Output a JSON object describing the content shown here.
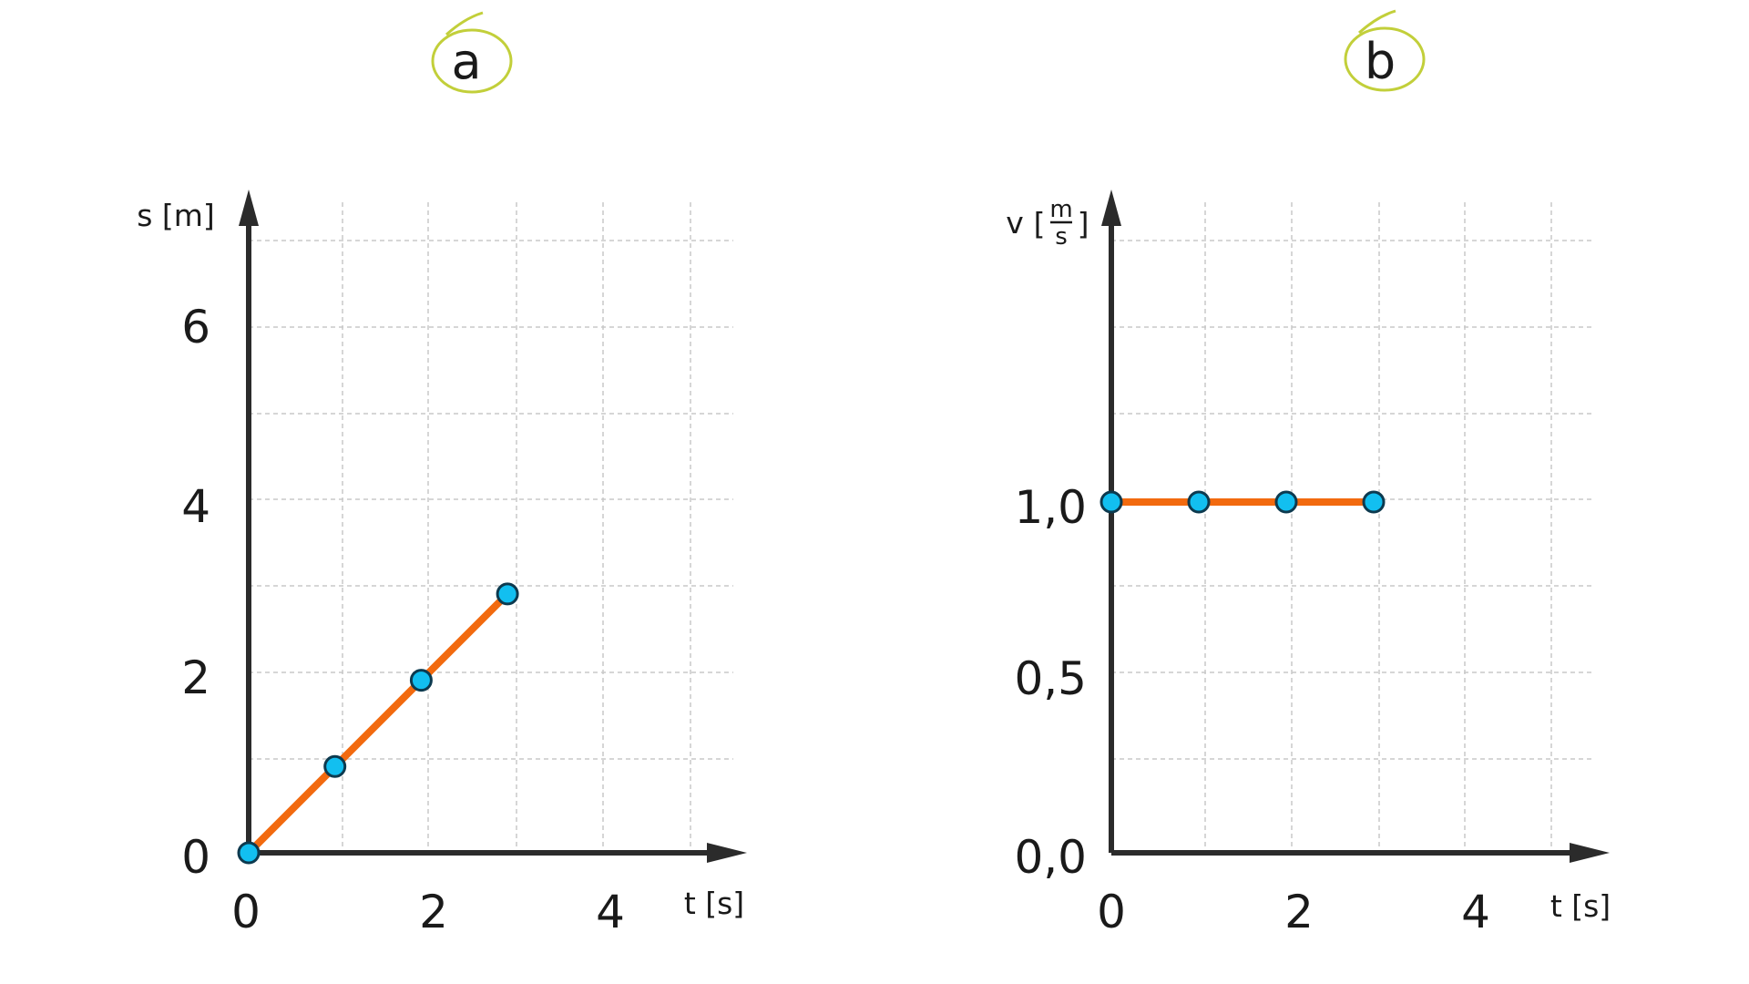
{
  "chart_data": [
    {
      "type": "line",
      "panel_label": "a",
      "xlabel": "t [s]",
      "ylabel": "s [m]",
      "xlim": [
        0,
        5.5
      ],
      "ylim": [
        0,
        7
      ],
      "x_ticks": [
        "0",
        "2",
        "4"
      ],
      "y_ticks": [
        "0",
        "2",
        "4",
        "6"
      ],
      "x": [
        0,
        1,
        2,
        3
      ],
      "y": [
        0,
        1,
        2,
        3
      ],
      "line_color": "#f26a0f",
      "marker_color": "#12bff0"
    },
    {
      "type": "line",
      "panel_label": "b",
      "xlabel": "t [s]",
      "ylabel_var": "v",
      "ylabel_unit_num": "m",
      "ylabel_unit_den": "s",
      "xlim": [
        0,
        5.5
      ],
      "ylim": [
        0,
        2
      ],
      "x_ticks": [
        "0",
        "2",
        "4"
      ],
      "y_ticks": [
        "0,0",
        "0,5",
        "1,0"
      ],
      "x": [
        0,
        1,
        2,
        3
      ],
      "y": [
        1.0,
        1.0,
        1.0,
        1.0
      ],
      "line_color": "#f26a0f",
      "marker_color": "#12bff0"
    }
  ]
}
